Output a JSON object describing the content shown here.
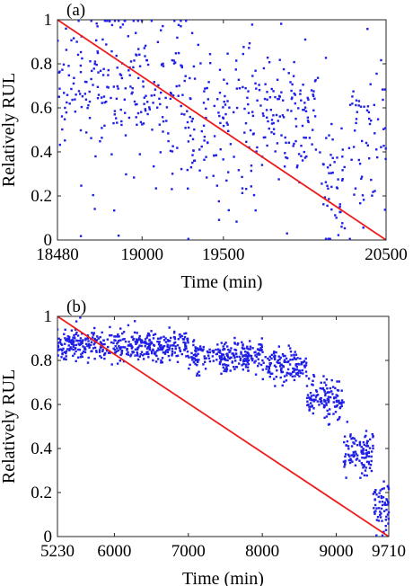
{
  "chart_data": [
    {
      "type": "scatter",
      "panel_label": "(a)",
      "xlabel": "Time (min)",
      "ylabel": "Relatively RUL",
      "xlim": [
        18480,
        20500
      ],
      "ylim": [
        0,
        1
      ],
      "xticks": [
        18480,
        19000,
        19500,
        20500
      ],
      "yticks": [
        0,
        0.2,
        0.4,
        0.6,
        0.8,
        1
      ],
      "ytick_labels": [
        "0",
        "0.2",
        "0.4",
        "0.6",
        "0.8",
        "1"
      ],
      "grid": false,
      "series": [
        {
          "kind": "points",
          "color": "#1f1fe6",
          "count": 620,
          "pattern": [
            [
              18480,
              19250,
              0.7,
              0.16,
              0.08
            ],
            [
              19250,
              19700,
              0.52,
              0.2,
              0.08
            ],
            [
              19700,
              20100,
              0.58,
              0.13,
              0.05
            ],
            [
              20100,
              20250,
              0.25,
              0.15,
              0.05
            ],
            [
              20250,
              20500,
              0.48,
              0.17,
              0.05
            ]
          ]
        },
        {
          "kind": "line",
          "color": "#ee1c1c",
          "x": [
            18480,
            20500
          ],
          "y": [
            1,
            0
          ]
        }
      ]
    },
    {
      "type": "scatter",
      "panel_label": "(b)",
      "xlabel": "Time (min)",
      "ylabel": "Relatively RUL",
      "xlim": [
        5230,
        9710
      ],
      "ylim": [
        0,
        1
      ],
      "xticks": [
        5230,
        6000,
        7000,
        8000,
        9000,
        9710
      ],
      "yticks": [
        0,
        0.2,
        0.4,
        0.6,
        0.8,
        1
      ],
      "ytick_labels": [
        "0",
        "0.2",
        "0.4",
        "0.6",
        "0.8",
        "1"
      ],
      "grid": false,
      "series": [
        {
          "kind": "points",
          "color": "#1f1fe6",
          "count": 1100,
          "pattern": [
            [
              5230,
              7000,
              0.87,
              0.035
            ],
            [
              7000,
              8000,
              0.82,
              0.035
            ],
            [
              8000,
              8600,
              0.78,
              0.04
            ],
            [
              8600,
              9100,
              0.62,
              0.05
            ],
            [
              9100,
              9500,
              0.38,
              0.05
            ],
            [
              9500,
              9710,
              0.15,
              0.06
            ]
          ]
        },
        {
          "kind": "line",
          "color": "#ee1c1c",
          "x": [
            5230,
            9710
          ],
          "y": [
            1,
            0
          ]
        }
      ]
    }
  ]
}
